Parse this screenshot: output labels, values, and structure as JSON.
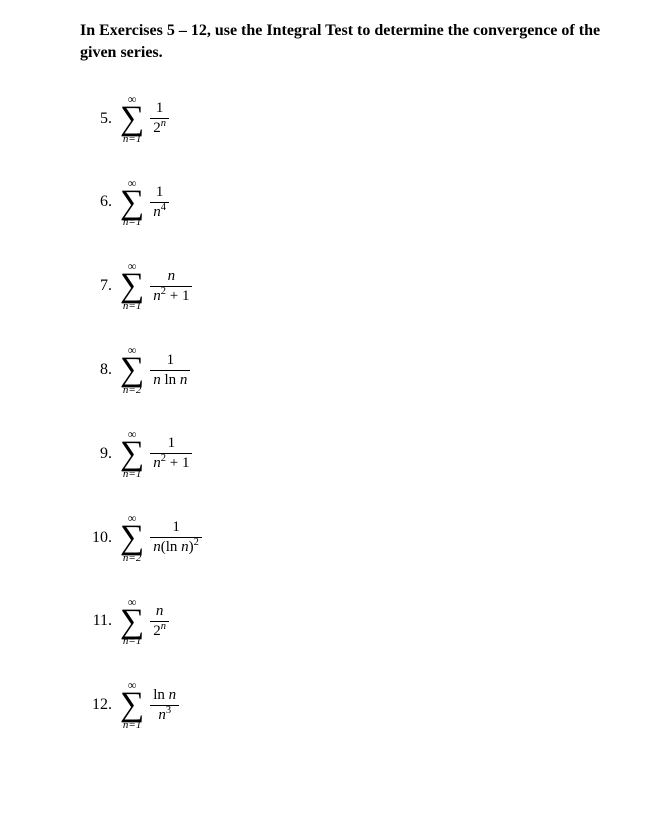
{
  "header_text": "In Exercises 5 – 12, use the Integral Test to determine the convergence of the given series.",
  "sigma_top": "∞",
  "sigma_glyph": "∑",
  "problems": [
    {
      "number": "5.",
      "lower": "n=1",
      "numer_html": "1",
      "denom_html": "2<span class='sup it'>n</span>"
    },
    {
      "number": "6.",
      "lower": "n=1",
      "numer_html": "1",
      "denom_html": "<span class='it'>n</span><span class='sup'>4</span>"
    },
    {
      "number": "7.",
      "lower": "n=1",
      "numer_html": "<span class='it'>n</span>",
      "denom_html": "<span class='it'>n</span><span class='sup'>2</span> + 1"
    },
    {
      "number": "8.",
      "lower": "n=2",
      "numer_html": "1",
      "denom_html": "<span class='it'>n</span> ln <span class='it'>n</span>"
    },
    {
      "number": "9.",
      "lower": "n=1",
      "numer_html": "1",
      "denom_html": "<span class='it'>n</span><span class='sup'>2</span> + 1"
    },
    {
      "number": "10.",
      "lower": "n=2",
      "numer_html": "1",
      "denom_html": "<span class='it'>n</span>(ln <span class='it'>n</span>)<span class='sup'>2</span>"
    },
    {
      "number": "11.",
      "lower": "n=1",
      "numer_html": "<span class='it'>n</span>",
      "denom_html": "2<span class='sup it'>n</span>"
    },
    {
      "number": "12.",
      "lower": "n=1",
      "numer_html": "ln <span class='it'>n</span>",
      "denom_html": "<span class='it'>n</span><span class='sup'>3</span>"
    }
  ]
}
